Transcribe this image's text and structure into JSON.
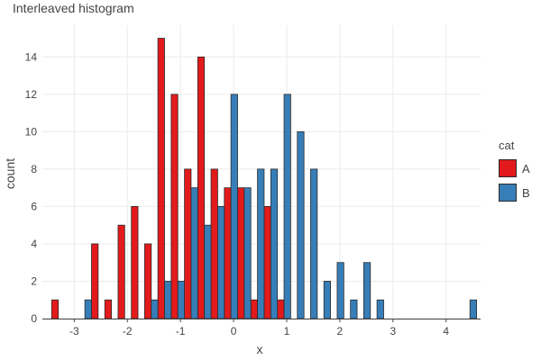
{
  "chart_data": {
    "type": "bar",
    "title": "Interleaved histogram",
    "xlabel": "x",
    "ylabel": "count",
    "xlim": [
      -3.6,
      4.65
    ],
    "ylim": [
      0,
      15.7
    ],
    "x_ticks": [
      -3,
      -2,
      -1,
      0,
      1,
      2,
      3,
      4
    ],
    "y_ticks": [
      0,
      2,
      4,
      6,
      8,
      10,
      12,
      14
    ],
    "bin_width": 0.25,
    "grid": true,
    "legend_title": "cat",
    "legend_position": "right",
    "series": [
      {
        "name": "A",
        "color": "#e31a1c",
        "bin_centers": [
          -3.3,
          -3.05,
          -2.8,
          -2.55,
          -2.3,
          -2.05,
          -1.8,
          -1.55,
          -1.3,
          -1.05,
          -0.8,
          -0.55,
          -0.3,
          -0.05,
          0.2,
          0.45,
          0.7,
          0.95,
          1.2,
          1.45,
          1.7,
          1.95,
          2.2,
          2.45,
          2.7,
          2.95,
          3.2,
          3.45,
          3.7,
          3.95,
          4.2,
          4.45
        ],
        "counts": [
          1,
          0,
          0,
          4,
          1,
          5,
          6,
          4,
          15,
          12,
          8,
          14,
          8,
          7,
          7,
          1,
          6,
          1,
          0,
          0,
          0,
          0,
          0,
          0,
          0,
          0,
          0,
          0,
          0,
          0,
          0,
          0
        ]
      },
      {
        "name": "B",
        "color": "#377eb8",
        "bin_centers": [
          -3.3,
          -3.05,
          -2.8,
          -2.55,
          -2.3,
          -2.05,
          -1.8,
          -1.55,
          -1.3,
          -1.05,
          -0.8,
          -0.55,
          -0.3,
          -0.05,
          0.2,
          0.45,
          0.7,
          0.95,
          1.2,
          1.45,
          1.7,
          1.95,
          2.2,
          2.45,
          2.7,
          2.95,
          3.2,
          3.45,
          3.7,
          3.95,
          4.2,
          4.45
        ],
        "counts": [
          0,
          0,
          1,
          0,
          0,
          0,
          0,
          1,
          2,
          2,
          7,
          5,
          6,
          12,
          7,
          8,
          8,
          12,
          10,
          8,
          2,
          3,
          1,
          3,
          1,
          0,
          0,
          0,
          0,
          0,
          0,
          1
        ]
      }
    ]
  }
}
